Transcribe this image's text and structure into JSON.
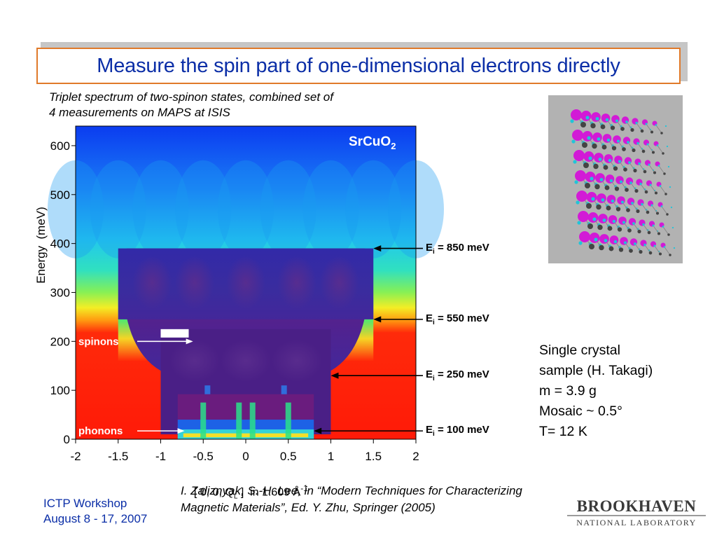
{
  "slide": {
    "title": "Measure the spin part of one-dimensional electrons directly",
    "caption_line1": "Triplet spectrum of two-spinon states, combined set of",
    "caption_line2": "4 measurements on MAPS at ISIS",
    "sample_info": [
      "Single crystal",
      "sample (H. Takagi)",
      "m = 3.9 g",
      "Mosaic ~ 0.5°",
      "T= 12 K"
    ],
    "reference_line1": "I. Zaliznyak, S.-H. Lee, in “Modern Techniques for Characterizing",
    "reference_line2": "Magnetic Materials”, Ed. Y. Zhu, Springer (2005)",
    "footer_line1": "ICTP Workshop",
    "footer_line2": "August 8 - 17, 2007",
    "logo_top": "BROOKHAVEN",
    "logo_bottom": "NATIONAL LABORATORY",
    "accent_color": "#0b2ea7",
    "title_border_color": "#e07a2a"
  },
  "chart_data": {
    "type": "heatmap",
    "compound_base": "SrCuO",
    "compound_subscript": "2",
    "ylabel": "Energy  (meV)",
    "xlabel_main": "[ 0, 0, Q",
    "xlabel_sub": "L",
    "xlabel_tail": " ]  in 1.609 Å",
    "xlabel_sup": "-1",
    "xlim": [
      -2,
      2
    ],
    "ylim": [
      0,
      640
    ],
    "x_ticks": [
      "-2",
      "-1.5",
      "-1",
      "-0.5",
      "0",
      "0.5",
      "1",
      "1.5",
      "2"
    ],
    "y_ticks": [
      "0",
      "100",
      "200",
      "300",
      "400",
      "500",
      "600"
    ],
    "annotations": [
      {
        "label": "spinons",
        "x": -0.62,
        "y": 200
      },
      {
        "label": "phonons",
        "x": -0.72,
        "y": 17
      }
    ],
    "incident_energies": [
      {
        "label_main": "E",
        "label_sub": "i",
        "label_rest": " = 850 meV",
        "value": 850,
        "marker_y": 390,
        "window_xlim": [
          -1.5,
          1.5
        ]
      },
      {
        "label_main": "E",
        "label_sub": "i",
        "label_rest": " = 550 meV",
        "value": 550,
        "marker_y": 245,
        "window_xlim": [
          -1.5,
          1.5
        ]
      },
      {
        "label_main": "E",
        "label_sub": "i",
        "label_rest": " = 250 meV",
        "value": 250,
        "marker_y": 130,
        "window_xlim": [
          -1,
          1
        ]
      },
      {
        "label_main": "E",
        "label_sub": "i",
        "label_rest": " = 100 meV",
        "value": 100,
        "marker_y": 17,
        "window_xlim": [
          -0.8,
          0.8
        ]
      }
    ]
  }
}
